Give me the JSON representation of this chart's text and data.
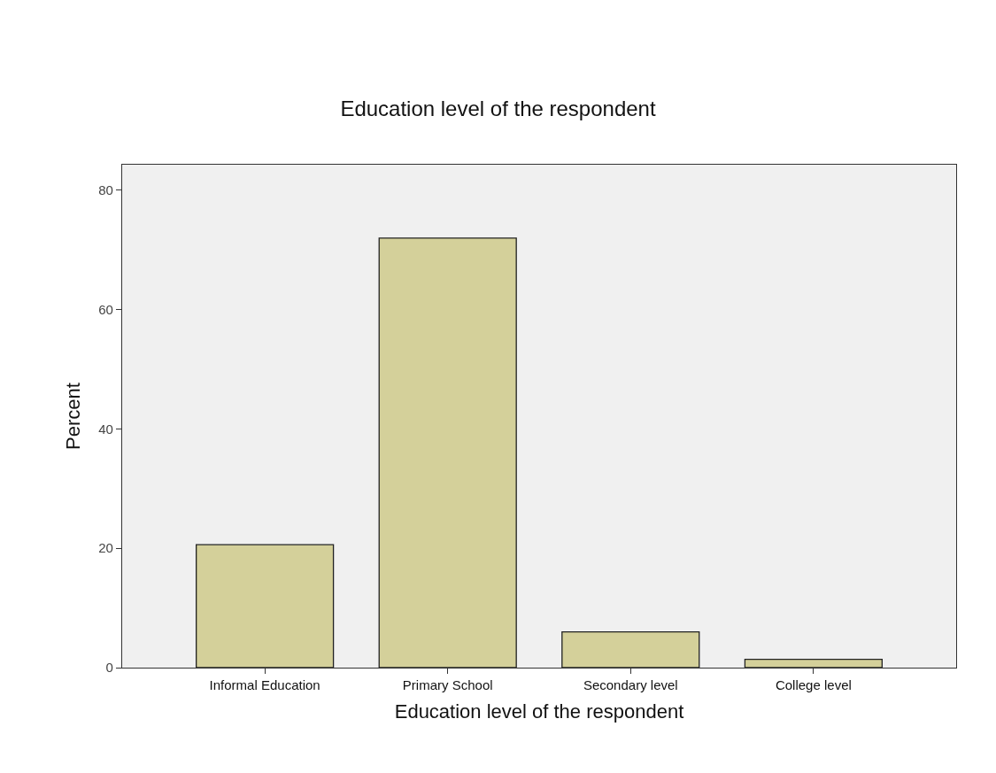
{
  "chart_data": {
    "type": "bar",
    "title": "Education level of the respondent",
    "xlabel": "Education level of the respondent",
    "ylabel": "Percent",
    "categories": [
      "Informal Education",
      "Primary School",
      "Secondary level",
      "College level"
    ],
    "values": [
      20.6,
      72.0,
      6.0,
      1.4
    ],
    "color": "#d4d09a",
    "ylim": [
      0,
      84.3
    ],
    "yticks": [
      0,
      20,
      40,
      60,
      80
    ],
    "grid": false,
    "legend": false
  }
}
